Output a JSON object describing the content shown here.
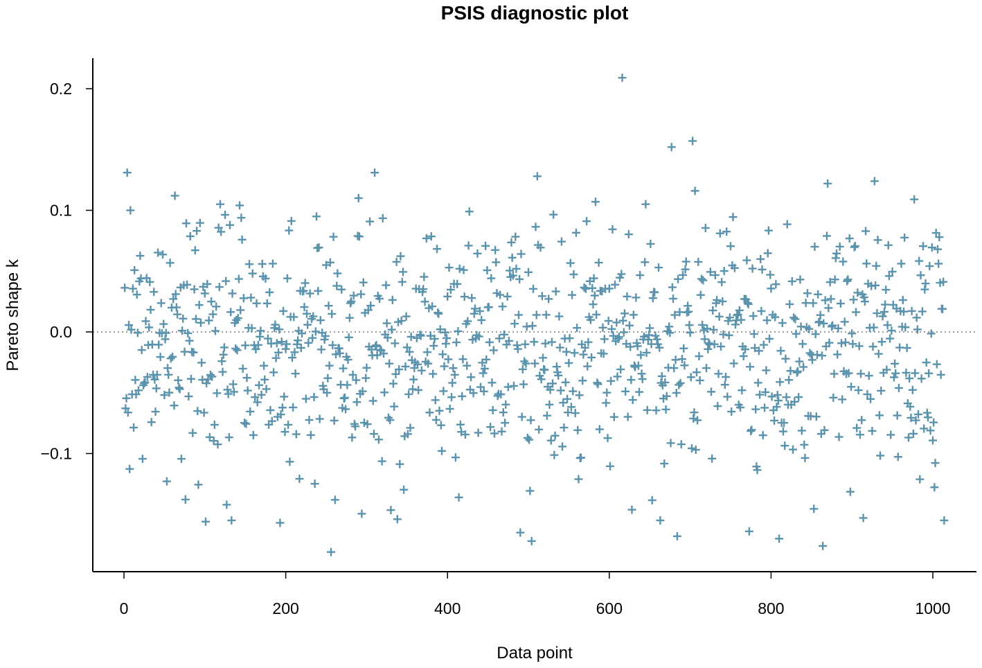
{
  "chart_data": {
    "type": "scatter",
    "title": "PSIS diagnostic plot",
    "xlabel": "Data point",
    "ylabel": "Pareto shape k",
    "xlim": [
      -40,
      1050
    ],
    "ylim": [
      -0.197,
      0.225
    ],
    "x_ticks": [
      0,
      200,
      400,
      600,
      800,
      1000
    ],
    "x_tick_labels": [
      "0",
      "200",
      "400",
      "600",
      "800",
      "1000"
    ],
    "y_ticks": [
      -0.1,
      0.0,
      0.1,
      0.2
    ],
    "y_tick_labels": [
      "−0.1",
      "0.0",
      "0.1",
      "0.2"
    ],
    "reference_line": {
      "y": 0,
      "style": "dotted",
      "color": "#999999"
    },
    "marker": "plus",
    "point_color": "#5b93ad",
    "grid": false,
    "legend": "none",
    "n_points": 1014,
    "x_first": 1,
    "x_step": 1,
    "notable_points": [
      {
        "x": 616,
        "y": 0.209
      },
      {
        "x": 703,
        "y": 0.157
      },
      {
        "x": 677,
        "y": 0.152
      },
      {
        "x": 4,
        "y": 0.131
      },
      {
        "x": 310,
        "y": 0.131
      },
      {
        "x": 511,
        "y": 0.128
      },
      {
        "x": 928,
        "y": 0.124
      },
      {
        "x": 870,
        "y": 0.122
      },
      {
        "x": 706,
        "y": 0.116
      },
      {
        "x": 63,
        "y": 0.112
      },
      {
        "x": 290,
        "y": 0.11
      },
      {
        "x": 977,
        "y": 0.109
      },
      {
        "x": 583,
        "y": 0.107
      },
      {
        "x": 119,
        "y": 0.105
      },
      {
        "x": 143,
        "y": 0.104
      },
      {
        "x": 645,
        "y": 0.105
      },
      {
        "x": 427,
        "y": 0.099
      },
      {
        "x": 8,
        "y": 0.1
      },
      {
        "x": 256,
        "y": -0.181
      },
      {
        "x": 864,
        "y": -0.176
      },
      {
        "x": 504,
        "y": -0.172
      },
      {
        "x": 810,
        "y": -0.17
      },
      {
        "x": 684,
        "y": -0.168
      },
      {
        "x": 490,
        "y": -0.165
      },
      {
        "x": 773,
        "y": -0.164
      },
      {
        "x": 193,
        "y": -0.157
      },
      {
        "x": 101,
        "y": -0.156
      },
      {
        "x": 133,
        "y": -0.155
      },
      {
        "x": 338,
        "y": -0.154
      },
      {
        "x": 663,
        "y": -0.155
      },
      {
        "x": 914,
        "y": -0.153
      },
      {
        "x": 1014,
        "y": -0.155
      }
    ]
  }
}
